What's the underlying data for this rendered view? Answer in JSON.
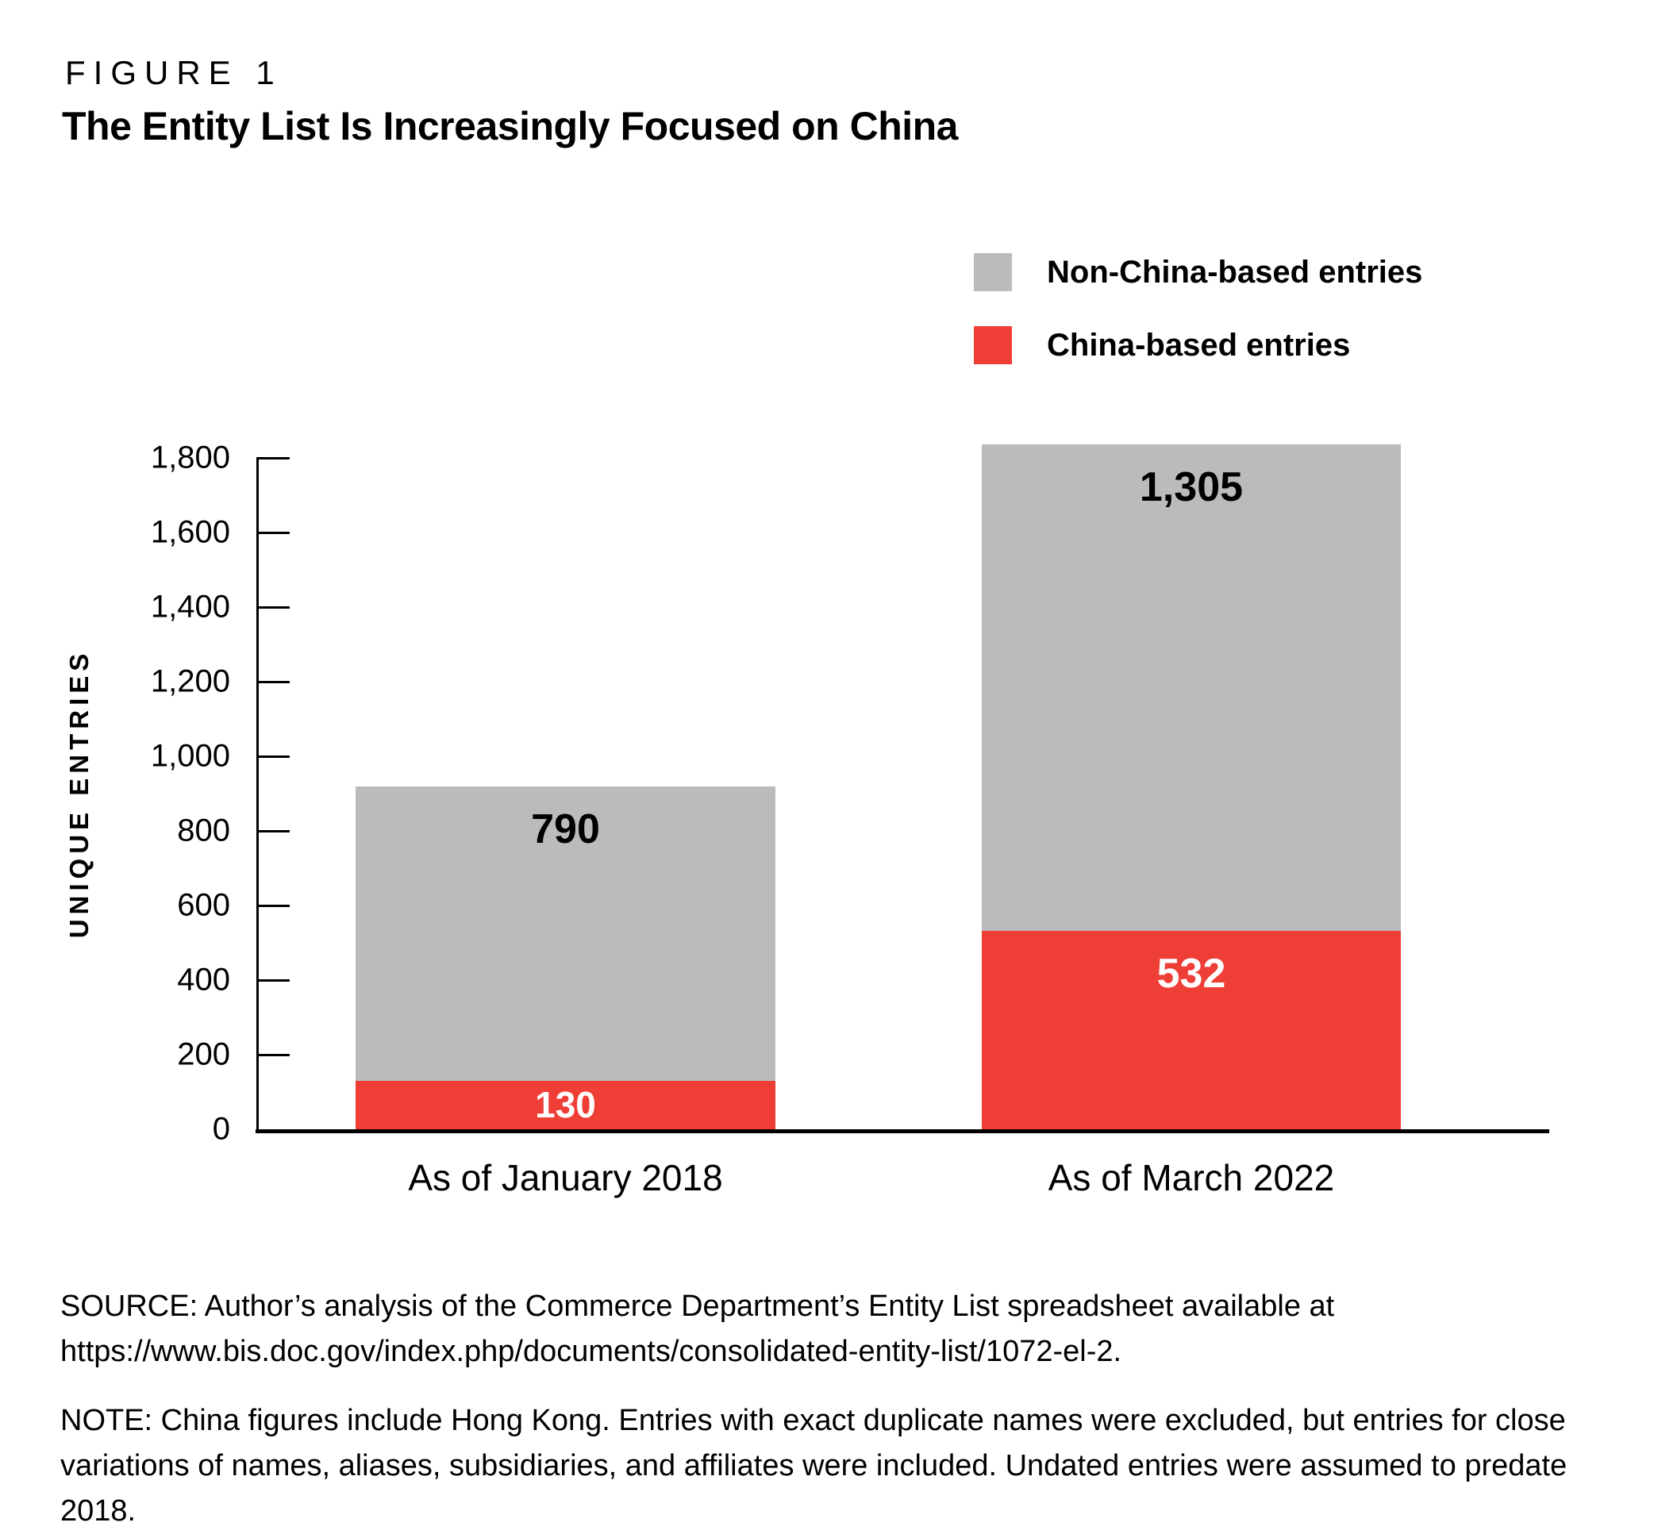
{
  "figure": {
    "label": "FIGURE 1",
    "title": "The Entity List Is Increasingly Focused on China"
  },
  "legend": {
    "items": [
      {
        "label": "Non-China-based entries",
        "color": "#BBBBBD"
      },
      {
        "label": "China-based entries",
        "color": "#EE3E36"
      }
    ]
  },
  "chart_data": {
    "type": "bar",
    "stacked": true,
    "title": "The Entity List Is Increasingly Focused on China",
    "categories": [
      "As of January 2018",
      "As of March 2022"
    ],
    "series": [
      {
        "name": "China-based entries",
        "color": "#EE3E36",
        "text_color": "#FFFFFF",
        "values": [
          130,
          532
        ],
        "labels": [
          "130",
          "532"
        ]
      },
      {
        "name": "Non-China-based entries",
        "color": "#BBBBBD",
        "text_color": "#000000",
        "values": [
          790,
          1305
        ],
        "labels": [
          "790",
          "1,305"
        ]
      }
    ],
    "totals": [
      920,
      1837
    ],
    "ylabel": "UNIQUE ENTRIES",
    "ylim": [
      0,
      1800
    ],
    "ytick_step": 200,
    "ytick_labels": [
      "0",
      "200",
      "400",
      "600",
      "800",
      "1,000",
      "1,200",
      "1,400",
      "1,600",
      "1,800"
    ],
    "grid": false,
    "legend_position": "top-right"
  },
  "captions": {
    "source_lines": [
      "SOURCE: Author’s analysis of the Commerce Department’s Entity List spreadsheet available at",
      "https://www.bis.doc.gov/index.php/documents/consolidated-entity-list/1072-el-2."
    ],
    "note": "NOTE: China figures include Hong Kong. Entries with exact duplicate names were excluded, but entries for close variations of names, aliases, subsidiaries, and affiliates were included. Undated entries were assumed to predate 2018."
  }
}
